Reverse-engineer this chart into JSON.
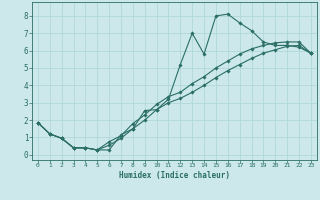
{
  "xlabel": "Humidex (Indice chaleur)",
  "ylabel": "",
  "xlim": [
    -0.5,
    23.5
  ],
  "ylim": [
    -0.3,
    8.8
  ],
  "xticks": [
    0,
    1,
    2,
    3,
    4,
    5,
    6,
    7,
    8,
    9,
    10,
    11,
    12,
    13,
    14,
    15,
    16,
    17,
    18,
    19,
    20,
    21,
    22,
    23
  ],
  "yticks": [
    0,
    1,
    2,
    3,
    4,
    5,
    6,
    7,
    8
  ],
  "color": "#2a6e65",
  "bg_color": "#cce8eb",
  "grid_color": "#b0d8dc",
  "line1_x": [
    0,
    1,
    2,
    3,
    4,
    5,
    6,
    7,
    8,
    9,
    10,
    11,
    12,
    13,
    14,
    15,
    16,
    17,
    18,
    19,
    20,
    21,
    22,
    23
  ],
  "line1_y": [
    1.85,
    1.2,
    0.95,
    0.4,
    0.4,
    0.28,
    0.28,
    1.15,
    1.5,
    2.55,
    2.6,
    3.2,
    5.2,
    7.0,
    5.8,
    8.0,
    8.1,
    7.6,
    7.15,
    6.5,
    6.3,
    6.3,
    6.2,
    5.85
  ],
  "line2_x": [
    0,
    1,
    2,
    3,
    4,
    5,
    6,
    7,
    8,
    9,
    10,
    11,
    12,
    13,
    14,
    15,
    16,
    17,
    18,
    19,
    20,
    21,
    22,
    23
  ],
  "line2_y": [
    1.85,
    1.2,
    0.95,
    0.4,
    0.4,
    0.28,
    0.55,
    0.95,
    1.5,
    2.0,
    2.6,
    3.0,
    3.25,
    3.6,
    4.0,
    4.45,
    4.85,
    5.2,
    5.55,
    5.85,
    6.05,
    6.25,
    6.3,
    5.85
  ],
  "line3_x": [
    0,
    1,
    2,
    3,
    4,
    5,
    6,
    7,
    8,
    9,
    10,
    11,
    12,
    13,
    14,
    15,
    16,
    17,
    18,
    19,
    20,
    21,
    22,
    23
  ],
  "line3_y": [
    1.85,
    1.2,
    0.95,
    0.4,
    0.4,
    0.28,
    0.75,
    1.1,
    1.8,
    2.3,
    2.9,
    3.35,
    3.6,
    4.1,
    4.5,
    5.0,
    5.4,
    5.8,
    6.1,
    6.3,
    6.45,
    6.5,
    6.5,
    5.85
  ]
}
